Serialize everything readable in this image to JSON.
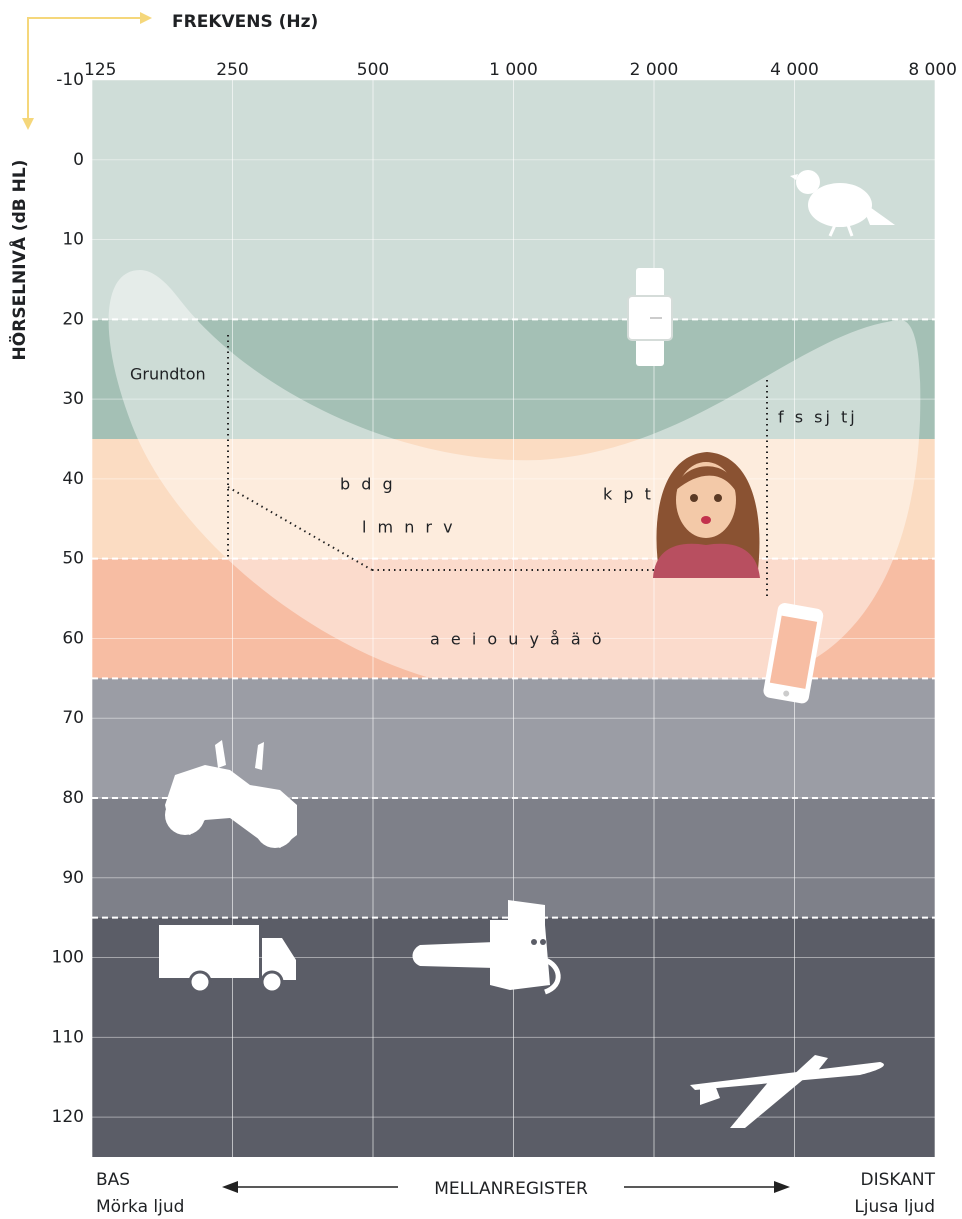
{
  "chart_data": {
    "type": "audiogram",
    "x_label": "FREKVENS (Hz)",
    "y_label": "HÖRSELNIVÅ (dB HL)",
    "log_x": true,
    "y_inverted": true,
    "grid": true,
    "xlim": [
      125,
      8000
    ],
    "ylim": [
      -10,
      125
    ],
    "xticks": [
      125,
      250,
      500,
      {
        "value": 1000,
        "label": "1 000"
      },
      {
        "value": 2000,
        "label": "2 000"
      },
      {
        "value": 4000,
        "label": "4 000"
      },
      {
        "value": 8000,
        "label": "8 000"
      }
    ],
    "yticks": [
      -10,
      0,
      10,
      20,
      30,
      40,
      50,
      60,
      70,
      80,
      90,
      100,
      110,
      120
    ],
    "bands": [
      {
        "from": -10,
        "to": 20,
        "color": "#cfddd8",
        "dashed_top": false
      },
      {
        "from": 20,
        "to": 35,
        "color": "#a4c0b5",
        "dashed_top": true
      },
      {
        "from": 35,
        "to": 50,
        "color": "#fbdcc2",
        "dashed_top": false
      },
      {
        "from": 50,
        "to": 65,
        "color": "#f7bda3",
        "dashed_top": true
      },
      {
        "from": 65,
        "to": 80,
        "color": "#9b9da5",
        "dashed_top": true
      },
      {
        "from": 80,
        "to": 95,
        "color": "#7e8089",
        "dashed_top": true
      },
      {
        "from": 95,
        "to": 125,
        "color": "#5b5d67",
        "dashed_top": true
      }
    ],
    "annotations": [
      "Grundton",
      "f s sj tj",
      "b d g",
      "k p t",
      "l m n r v",
      "a e i o u y å ä ö"
    ],
    "footer": {
      "left": [
        "BAS",
        "Mörka ljud"
      ],
      "center": "MELLANREGISTER",
      "right": [
        "DISKANT",
        "Ljusa ljud"
      ]
    }
  }
}
